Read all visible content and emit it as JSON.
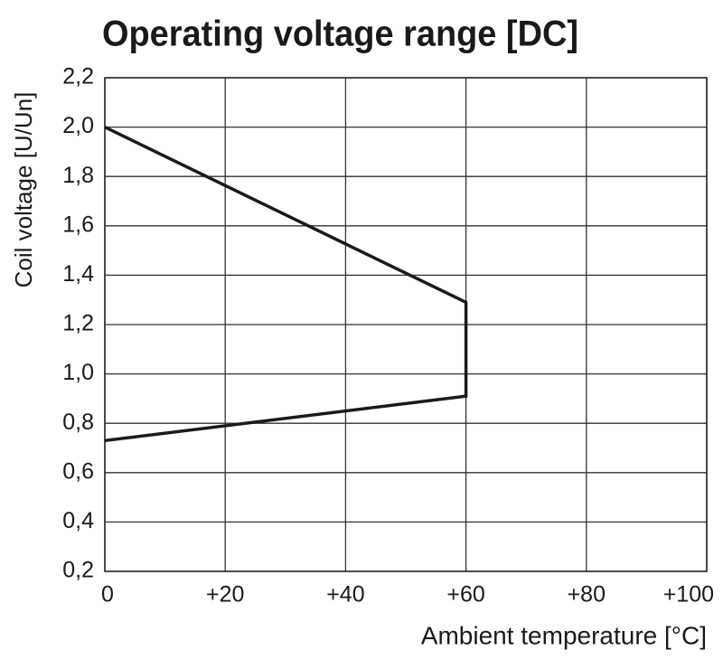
{
  "chart_data": {
    "type": "line",
    "title": "Operating voltage range [DC]",
    "x_label": "Ambient temperature [°C]",
    "y_label": "Coil voltage [U/Un]",
    "x": [
      0,
      60,
      60,
      0
    ],
    "values": [
      2.0,
      1.29,
      0.91,
      0.73
    ],
    "color": "#1a1a1a",
    "xlim": [
      0,
      100
    ],
    "xticks": [
      0,
      {
        "value": 20,
        "label": "+20"
      },
      {
        "value": 40,
        "label": "+40"
      },
      {
        "value": 60,
        "label": "+60"
      },
      {
        "value": 80,
        "label": "+80"
      },
      {
        "value": 100,
        "label": "+100"
      }
    ],
    "ylim": [
      0.2,
      2.2
    ],
    "yticks": [
      {
        "value": 0.2,
        "label": "0,2"
      },
      {
        "value": 0.4,
        "label": "0,4"
      },
      {
        "value": 0.6,
        "label": "0,6"
      },
      {
        "value": 0.8,
        "label": "0,8"
      },
      {
        "value": 1.0,
        "label": "1,0"
      },
      {
        "value": 1.2,
        "label": "1,2"
      },
      {
        "value": 1.4,
        "label": "1,4"
      },
      {
        "value": 1.6,
        "label": "1,6"
      },
      {
        "value": 1.8,
        "label": "1,8"
      },
      {
        "value": 2.0,
        "label": "2,0"
      },
      {
        "value": 2.2,
        "label": "2,2"
      }
    ],
    "grid": true
  }
}
